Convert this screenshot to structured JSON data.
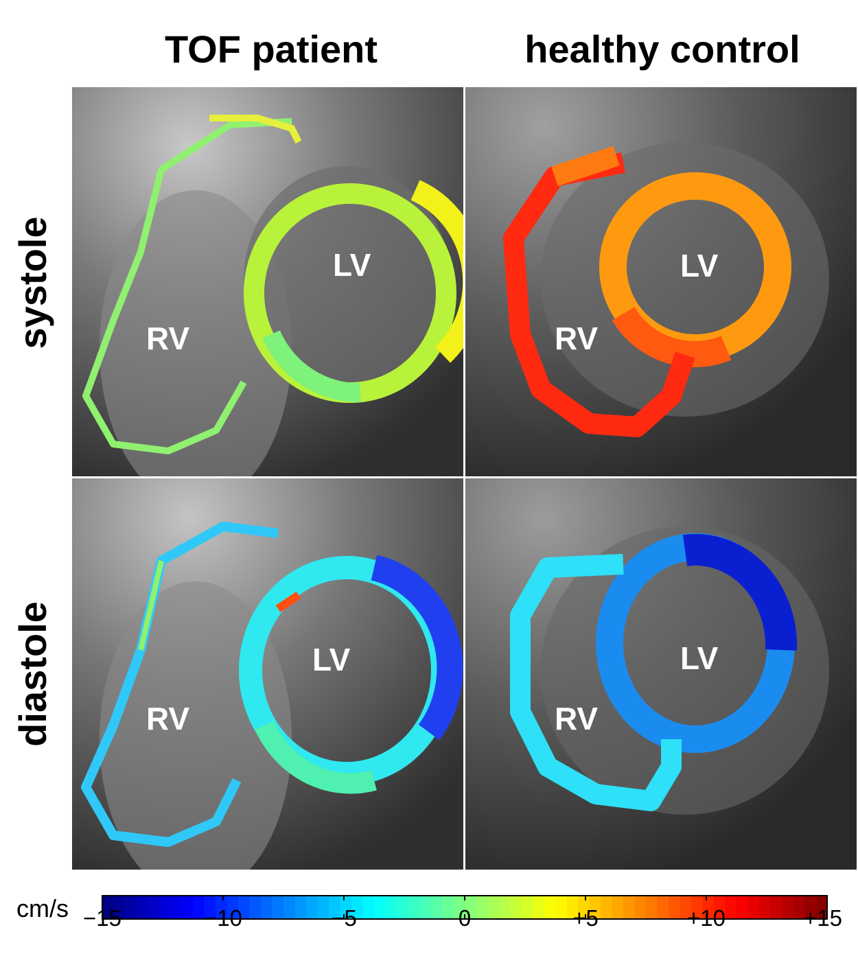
{
  "columns": {
    "left": "TOF patient",
    "right": "healthy control"
  },
  "rows": {
    "top": "systole",
    "bottom": "diastole"
  },
  "panel_labels": {
    "lv": "LV",
    "rv": "RV"
  },
  "colorbar": {
    "unit": "cm/s",
    "min": -15,
    "max": 15,
    "tick_labels": [
      "−15",
      "−10",
      "−5",
      "0",
      "+5",
      "+10",
      "+15"
    ],
    "tick_values": [
      -15,
      -10,
      -5,
      0,
      5,
      10,
      15
    ],
    "colormap": "jet"
  },
  "colors": {
    "background": "#ffffff",
    "mri_gray": "#5a5a5a"
  }
}
